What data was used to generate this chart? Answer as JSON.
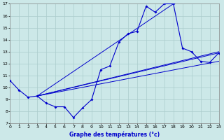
{
  "title": "Graphe des températures (°c)",
  "bg_color": "#cce8e8",
  "grid_color": "#aacccc",
  "line_color": "#0000cc",
  "ylim": [
    7,
    17
  ],
  "xlim": [
    0,
    23
  ],
  "yticks": [
    7,
    8,
    9,
    10,
    11,
    12,
    13,
    14,
    15,
    16,
    17
  ],
  "xticks": [
    0,
    1,
    2,
    3,
    4,
    5,
    6,
    7,
    8,
    9,
    10,
    11,
    12,
    13,
    14,
    15,
    16,
    17,
    18,
    19,
    20,
    21,
    22,
    23
  ],
  "main_line": {
    "x": [
      0,
      1,
      2,
      3,
      4,
      5,
      6,
      7,
      8,
      9,
      10,
      11,
      12,
      13,
      14,
      15,
      16,
      17,
      18,
      19,
      20,
      21,
      22,
      23
    ],
    "y": [
      10.6,
      9.8,
      9.2,
      9.3,
      8.7,
      8.4,
      8.4,
      7.5,
      8.3,
      9.0,
      11.5,
      11.8,
      13.8,
      14.5,
      14.7,
      16.8,
      16.3,
      17.0,
      17.0,
      13.3,
      13.0,
      12.2,
      12.1,
      12.9
    ]
  },
  "trend_lines": [
    {
      "x": [
        3,
        23
      ],
      "y": [
        9.3,
        12.9
      ]
    },
    {
      "x": [
        3,
        23
      ],
      "y": [
        9.3,
        12.2
      ]
    },
    {
      "x": [
        3,
        18
      ],
      "y": [
        9.3,
        17.0
      ]
    },
    {
      "x": [
        3,
        23
      ],
      "y": [
        9.3,
        13.0
      ]
    }
  ]
}
